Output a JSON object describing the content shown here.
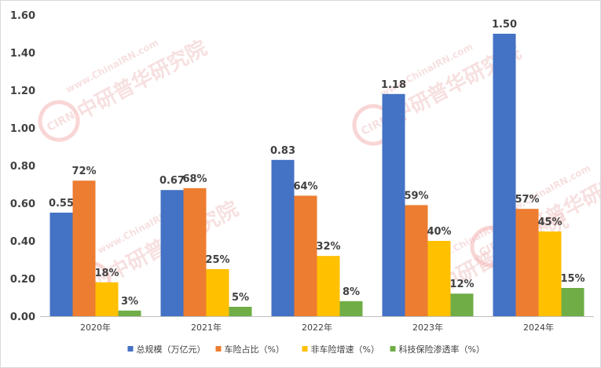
{
  "chart_data": {
    "type": "bar",
    "categories": [
      "2020年",
      "2021年",
      "2022年",
      "2023年",
      "2024年"
    ],
    "series": [
      {
        "name": "总规模（万亿元）",
        "color": "#4472c4",
        "values": [
          0.55,
          0.67,
          0.83,
          1.18,
          1.5
        ],
        "labels": [
          "0.55",
          "0.67",
          "0.83",
          "1.18",
          "1.50"
        ]
      },
      {
        "name": "车险占比（%）",
        "color": "#ed7d31",
        "values": [
          0.72,
          0.68,
          0.64,
          0.59,
          0.57
        ],
        "labels": [
          "72%",
          "68%",
          "64%",
          "59%",
          "57%"
        ]
      },
      {
        "name": "非车险增速（%）",
        "color": "#ffc000",
        "values": [
          0.18,
          0.25,
          0.32,
          0.4,
          0.45
        ],
        "labels": [
          "18%",
          "25%",
          "32%",
          "40%",
          "45%"
        ]
      },
      {
        "name": "科技保险渗透率（%）",
        "color": "#70ad47",
        "values": [
          0.03,
          0.05,
          0.08,
          0.12,
          0.15
        ],
        "labels": [
          "3%",
          "5%",
          "8%",
          "12%",
          "15%"
        ]
      }
    ],
    "yticks": [
      "0.00",
      "0.20",
      "0.40",
      "0.60",
      "0.80",
      "1.00",
      "1.20",
      "1.40",
      "1.60"
    ],
    "ylim": [
      0,
      1.6
    ],
    "title": "",
    "xlabel": "",
    "ylabel": "",
    "grid": false,
    "legend_position": "bottom"
  },
  "watermark": {
    "latin": "www.ChinaIRN.com",
    "cjk": "中研普华研究院",
    "logo": "CIRN"
  }
}
